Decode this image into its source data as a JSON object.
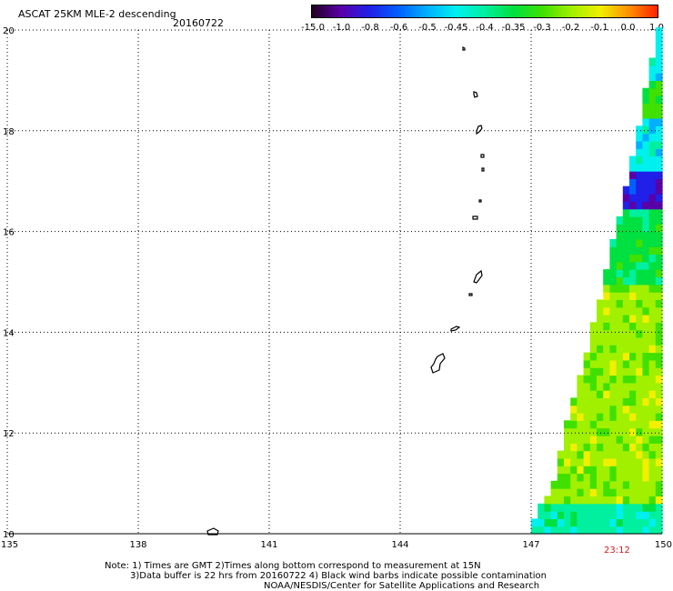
{
  "header": {
    "title": "ASCAT 25KM MLE-2 descending",
    "date": "20160722"
  },
  "colorbar": {
    "labels": [
      "-15.0",
      "-1.0",
      "-0.8",
      "-0.6",
      "-0.5",
      "-0.45",
      "-0.4",
      "-0.35",
      "-0.3",
      "-0.2",
      "-0.1",
      "0.0",
      "1.0"
    ],
    "colors": [
      "#200020",
      "#5a00a8",
      "#2020e8",
      "#0060ff",
      "#00b0ff",
      "#00f0f0",
      "#00f0a0",
      "#00e040",
      "#40e000",
      "#a0f000",
      "#f0f000",
      "#ff9000",
      "#ff2000"
    ]
  },
  "chart_data": {
    "type": "heatmap",
    "title": "ASCAT 25KM MLE-2 descending",
    "xlim": [
      135,
      150
    ],
    "ylim": [
      10,
      20
    ],
    "x_ticks": [
      "135",
      "138",
      "141",
      "144",
      "147",
      "150"
    ],
    "y_ticks": [
      "20",
      "18",
      "16",
      "14",
      "12",
      "10"
    ],
    "grid": true,
    "swath_left_edge_lon": [
      [
        10.0,
        146.9
      ],
      [
        10.5,
        147.2
      ],
      [
        11.0,
        147.5
      ],
      [
        11.8,
        147.7
      ],
      [
        12.5,
        147.9
      ],
      [
        13.4,
        148.2
      ],
      [
        14.4,
        148.5
      ],
      [
        15.2,
        148.7
      ],
      [
        16.2,
        149.0
      ],
      [
        17.0,
        149.2
      ],
      [
        17.8,
        149.4
      ],
      [
        18.7,
        149.6
      ],
      [
        19.5,
        149.8
      ],
      [
        20.0,
        149.9
      ]
    ],
    "scale_bands": [
      {
        "lat_range": [
          10.0,
          10.6
        ],
        "value": "-0.4"
      },
      {
        "lat_range": [
          10.6,
          15.0
        ],
        "value": "-0.2"
      },
      {
        "lat_range": [
          15.0,
          16.4
        ],
        "value": "-0.35"
      },
      {
        "lat_range": [
          16.4,
          17.2
        ],
        "value": "-0.8"
      },
      {
        "lat_range": [
          17.2,
          18.2
        ],
        "value": "-0.45"
      },
      {
        "lat_range": [
          18.2,
          19.0
        ],
        "value": "-0.3"
      },
      {
        "lat_range": [
          19.0,
          20.0
        ],
        "value": "-0.45"
      }
    ],
    "time_label": "23:12"
  },
  "notes": {
    "line1": "Note: 1) Times are GMT 2)Times along bottom correspond to measurement at 15N",
    "line2": "3)Data buffer is 22 hrs from 20160722 4) Black wind barbs indicate possible contamination",
    "line3": "NOAA/NESDIS/Center for Satellite Applications and Research"
  }
}
